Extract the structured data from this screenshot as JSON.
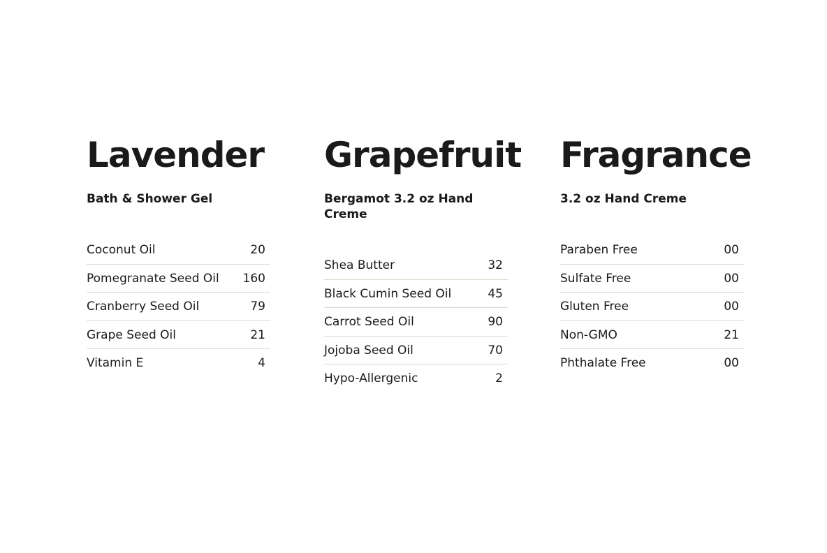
{
  "columns": [
    {
      "title": "Lavender",
      "subtitle": "Bath & Shower Gel",
      "rows": [
        {
          "label": "Coconut Oil",
          "value": "20"
        },
        {
          "label": "Pomegranate Seed Oil",
          "value": "160"
        },
        {
          "label": "Cranberry Seed Oil",
          "value": "79"
        },
        {
          "label": "Grape Seed Oil",
          "value": "21"
        },
        {
          "label": "Vitamin E",
          "value": "4"
        }
      ]
    },
    {
      "title": "Grapefruit",
      "subtitle": "Bergamot 3.2 oz Hand Creme",
      "rows": [
        {
          "label": "Shea Butter",
          "value": "32"
        },
        {
          "label": "Black Cumin Seed Oil",
          "value": "45"
        },
        {
          "label": "Carrot Seed Oil",
          "value": "90"
        },
        {
          "label": "Jojoba Seed Oil",
          "value": "70"
        },
        {
          "label": "Hypo-Allergenic",
          "value": "2"
        }
      ]
    },
    {
      "title": "Fragrance",
      "subtitle": "3.2 oz Hand Creme",
      "rows": [
        {
          "label": "Paraben Free",
          "value": "00"
        },
        {
          "label": "Sulfate Free",
          "value": "00"
        },
        {
          "label": "Gluten Free",
          "value": "00"
        },
        {
          "label": "Non-GMO",
          "value": "21"
        },
        {
          "label": "Phthalate Free",
          "value": "00"
        }
      ]
    }
  ]
}
